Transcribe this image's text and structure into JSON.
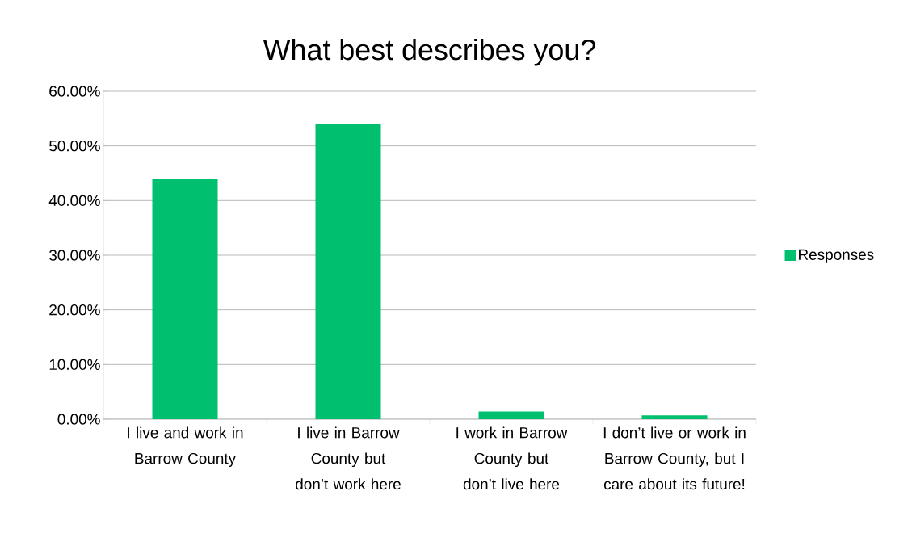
{
  "chart_data": {
    "type": "bar",
    "title": "What best describes you?",
    "categories": [
      "I live and work in Barrow County",
      "I live in Barrow County but don’t work here",
      "I work in Barrow County but don’t live here",
      "I don’t live or work in Barrow County, but I care about its future!"
    ],
    "series": [
      {
        "name": "Responses",
        "color": "#00bf6f",
        "values": [
          43.9,
          54.1,
          1.4,
          0.7
        ]
      }
    ],
    "ylim": [
      0,
      60
    ],
    "yticks": [
      {
        "value": 0,
        "label": "0.00%"
      },
      {
        "value": 10,
        "label": "10.00%"
      },
      {
        "value": 20,
        "label": "20.00%"
      },
      {
        "value": 30,
        "label": "30.00%"
      },
      {
        "value": 40,
        "label": "40.00%"
      },
      {
        "value": 50,
        "label": "50.00%"
      },
      {
        "value": 60,
        "label": "60.00%"
      }
    ],
    "grid": "y",
    "legend": "right"
  }
}
